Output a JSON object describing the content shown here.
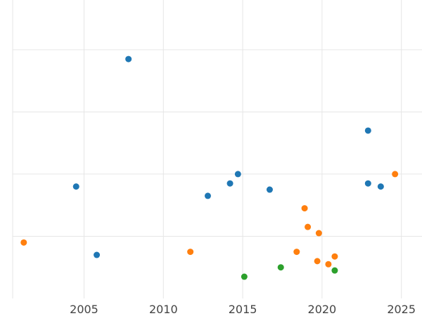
{
  "chart_data": {
    "type": "scatter",
    "title": "",
    "xlabel": "",
    "ylabel": "",
    "xlim": [
      2000.5,
      2026.3
    ],
    "ylim": [
      0,
      9.6
    ],
    "x_ticks": [
      2005,
      2010,
      2015,
      2020,
      2025
    ],
    "x_tick_labels": [
      "2005",
      "2010",
      "2015",
      "2020",
      "2025"
    ],
    "y_gridlines": [
      2,
      4,
      6,
      8
    ],
    "grid": true,
    "y_tick_labels_visible": false,
    "legend": "none",
    "series": [
      {
        "color": "#1f77b4",
        "points": [
          {
            "x": 2004.5,
            "y": 3.6
          },
          {
            "x": 2005.8,
            "y": 1.4
          },
          {
            "x": 2007.8,
            "y": 7.7
          },
          {
            "x": 2012.8,
            "y": 3.3
          },
          {
            "x": 2014.2,
            "y": 3.7
          },
          {
            "x": 2014.7,
            "y": 4.0
          },
          {
            "x": 2016.7,
            "y": 3.5
          },
          {
            "x": 2022.9,
            "y": 5.4
          },
          {
            "x": 2022.9,
            "y": 3.7
          },
          {
            "x": 2023.7,
            "y": 3.6
          }
        ]
      },
      {
        "color": "#ff7f0e",
        "points": [
          {
            "x": 2001.2,
            "y": 1.8
          },
          {
            "x": 2011.7,
            "y": 1.5
          },
          {
            "x": 2018.4,
            "y": 1.5
          },
          {
            "x": 2018.9,
            "y": 2.9
          },
          {
            "x": 2019.1,
            "y": 2.3
          },
          {
            "x": 2019.7,
            "y": 1.2
          },
          {
            "x": 2019.8,
            "y": 2.1
          },
          {
            "x": 2020.4,
            "y": 1.1
          },
          {
            "x": 2020.8,
            "y": 1.35
          },
          {
            "x": 2024.6,
            "y": 4.0
          }
        ]
      },
      {
        "color": "#2ca02c",
        "points": [
          {
            "x": 2015.1,
            "y": 0.7
          },
          {
            "x": 2017.4,
            "y": 1.0
          },
          {
            "x": 2020.8,
            "y": 0.9
          }
        ]
      }
    ]
  }
}
